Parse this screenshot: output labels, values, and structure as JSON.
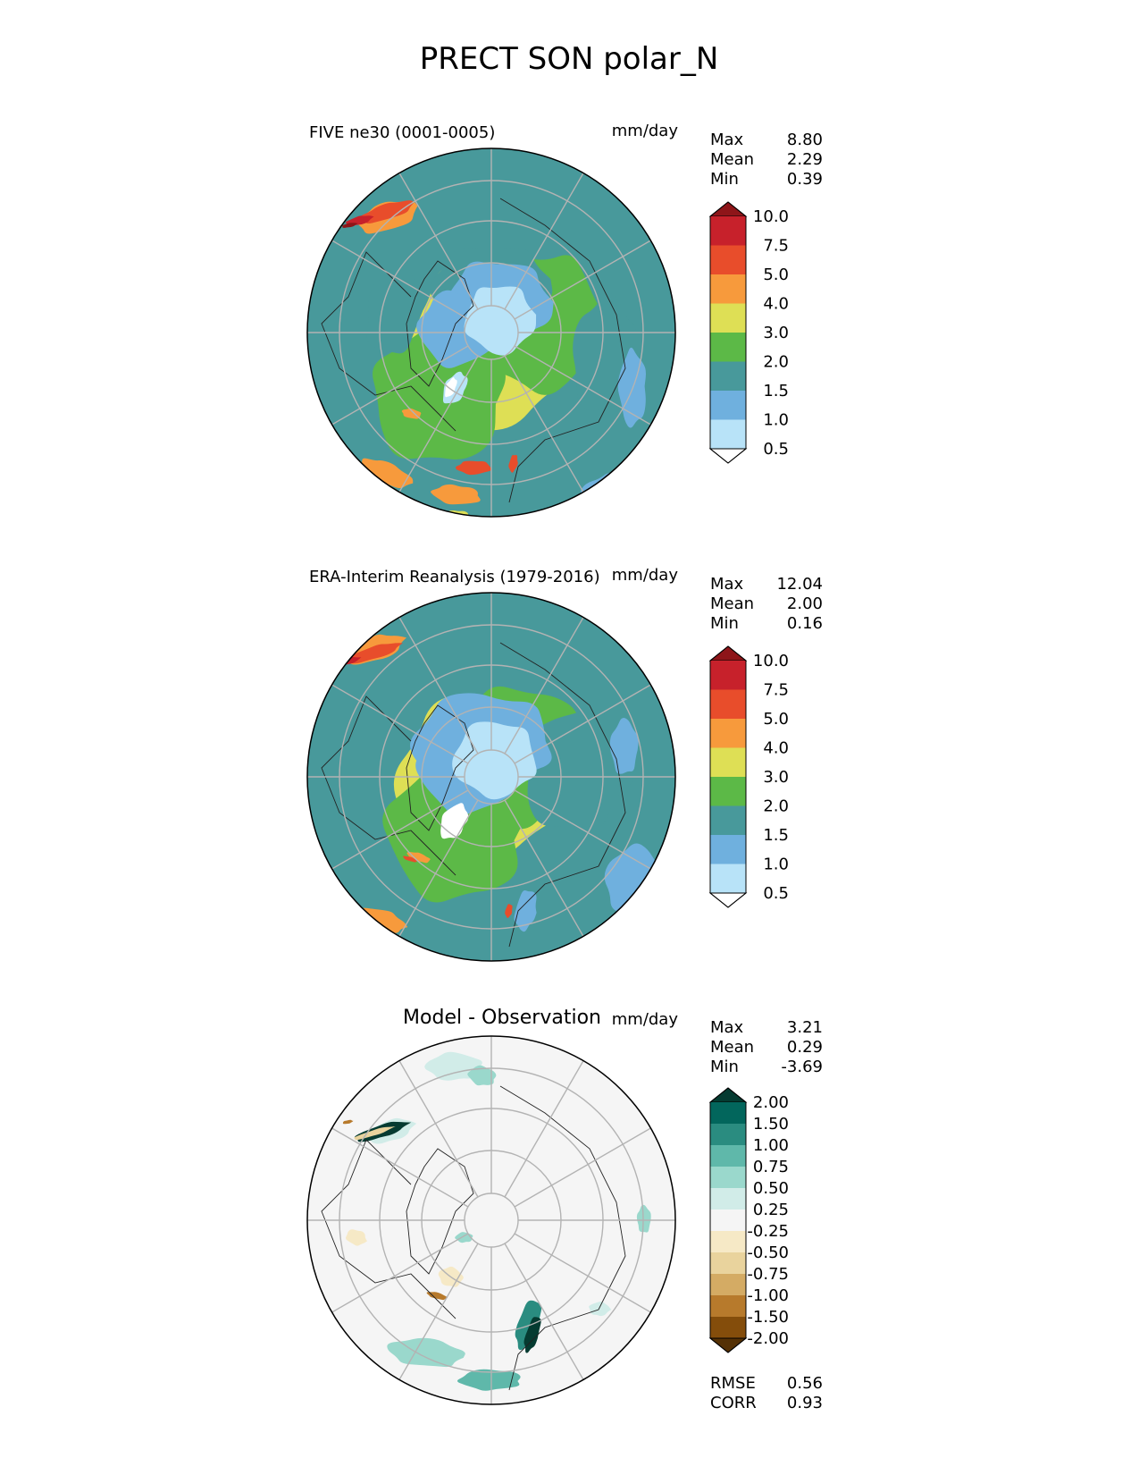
{
  "figure": {
    "title": "PRECT SON polar_N"
  },
  "chart_data": [
    {
      "type": "heatmap",
      "projection": "north-polar-stereographic",
      "title": "FIVE ne30 (0001-0005)",
      "units": "mm/day",
      "stats": {
        "max_label": "Max",
        "max": "8.80",
        "mean_label": "Mean",
        "mean": "2.29",
        "min_label": "Min",
        "min": "0.39"
      },
      "levels": [
        "0.5",
        "1.0",
        "1.5",
        "2.0",
        "3.0",
        "4.0",
        "5.0",
        "7.5",
        "10.0"
      ],
      "colors": [
        "#ffffff",
        "#b8e3f8",
        "#6fb0de",
        "#48999b",
        "#5cb947",
        "#dedf55",
        "#f79a3c",
        "#e84d2b",
        "#c7212b",
        "#8e1519"
      ],
      "pattern": "model",
      "grid": true,
      "coastlines": true
    },
    {
      "type": "heatmap",
      "projection": "north-polar-stereographic",
      "title": "ERA-Interim Reanalysis (1979-2016)",
      "units": "mm/day",
      "stats": {
        "max_label": "Max",
        "max": "12.04",
        "mean_label": "Mean",
        "mean": "2.00",
        "min_label": "Min",
        "min": "0.16"
      },
      "levels": [
        "0.5",
        "1.0",
        "1.5",
        "2.0",
        "3.0",
        "4.0",
        "5.0",
        "7.5",
        "10.0"
      ],
      "colors": [
        "#ffffff",
        "#b8e3f8",
        "#6fb0de",
        "#48999b",
        "#5cb947",
        "#dedf55",
        "#f79a3c",
        "#e84d2b",
        "#c7212b",
        "#8e1519"
      ],
      "pattern": "obs",
      "grid": true,
      "coastlines": true
    },
    {
      "type": "heatmap",
      "projection": "north-polar-stereographic",
      "title": "Model - Observation",
      "units": "mm/day",
      "stats": {
        "max_label": "Max",
        "max": "3.21",
        "mean_label": "Mean",
        "mean": "0.29",
        "min_label": "Min",
        "min": "-3.69"
      },
      "levels": [
        "-2.00",
        "-1.50",
        "-1.00",
        "-0.75",
        "-0.50",
        "-0.25",
        "0.25",
        "0.50",
        "0.75",
        "1.00",
        "1.50",
        "2.00"
      ],
      "colors": [
        "#553105",
        "#844d0b",
        "#b77a2c",
        "#d4ab64",
        "#e9d39d",
        "#f6e9c6",
        "#f5f5f5",
        "#d1ece8",
        "#9ad8cc",
        "#5fb8aa",
        "#2a8c80",
        "#02665c",
        "#053b31"
      ],
      "pattern": "diff",
      "grid": true,
      "coastlines": true,
      "metrics": {
        "rmse_label": "RMSE",
        "rmse": "0.56",
        "corr_label": "CORR",
        "corr": "0.93"
      }
    }
  ]
}
